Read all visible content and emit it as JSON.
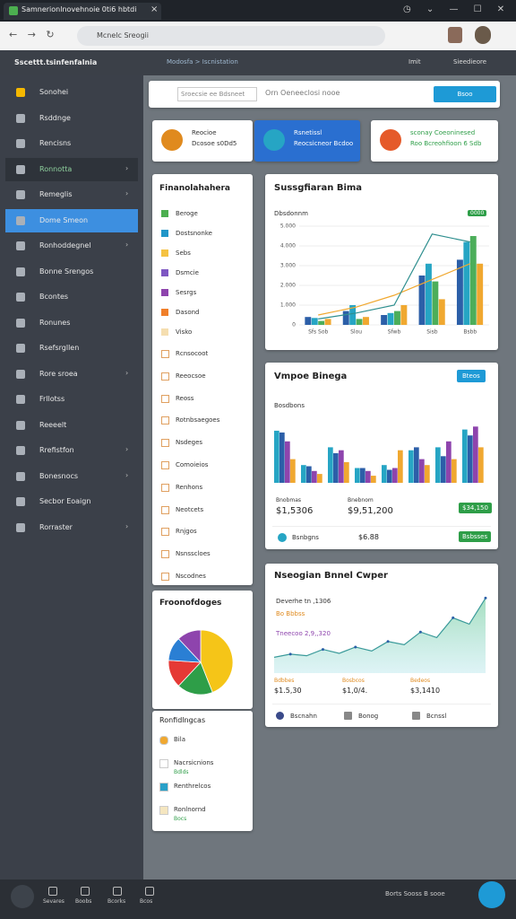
{
  "browser": {
    "tab_title": "Samnerionlnovehnoie 0ti6 hbtdi",
    "url": "Mcnelc Sreogii"
  },
  "app_header": {
    "brand": "Sscettt.tsinfenfalnia",
    "breadcrumb": "Modosfa > Iscnistation",
    "user_label": "Imit",
    "account": "Sieedieore"
  },
  "sidebar": {
    "items": [
      "Sonohei",
      "Rsddnge",
      "Rencisns",
      "Ronnotta",
      "Remeglis",
      "Dome Smeon",
      "Ronhoddegnel",
      "Bonne Srengos",
      "Bcontes",
      "Ronunes",
      "Rsefsrgllen",
      "Rore sroea",
      "Frllotss",
      "Reeeelt",
      "Rrefistfon",
      "Bonesnocs",
      "Secbor Eoaign",
      "Rorraster"
    ]
  },
  "search": {
    "placeholder": "Sroecsie ee Bdsneet",
    "text": "Orn Oeneeclosi nooe",
    "button": "Bsoo"
  },
  "promos": [
    {
      "title": "Reocioe",
      "sub": "Dcosoe s0Dd5"
    },
    {
      "title": "Rsnetissl",
      "sub": "Reocsicneor Bcdoo"
    },
    {
      "title": "sconay Coeoninesed",
      "sub": "Roo Bcreohfioon 6 Sdb"
    }
  ],
  "filters": {
    "title": "Finanolahahera",
    "checkboxes": [
      {
        "label": "Beroge",
        "color": "#4caf50"
      },
      {
        "label": "Dostsnonke",
        "color": "#2196c8"
      },
      {
        "label": "Sebs",
        "color": "#f5c242"
      },
      {
        "label": "Dsmcie",
        "color": "#7e57c2"
      },
      {
        "label": "Sesrgs",
        "color": "#8e44ad"
      },
      {
        "label": "Dasond",
        "color": "#f07f2a"
      },
      {
        "label": "Visko",
        "color": "#f5deb0"
      }
    ],
    "items": [
      "Rcnsocoot",
      "Reeocsoe",
      "Reoss",
      "Rotnbsaegoes",
      "Nsdeges",
      "Comoieios",
      "Renhons",
      "Neotcets",
      "Rnjgos",
      "Nsnsscloes",
      "Nscodnes"
    ]
  },
  "pie_panel": {
    "type": "pie",
    "title": "Froonofdoges",
    "values": [
      44,
      18,
      14,
      12,
      12
    ],
    "colors": [
      "#f5c518",
      "#2e9e48",
      "#e53935",
      "#2a7fd4",
      "#8e44ad"
    ]
  },
  "legend_panel": {
    "title": "Ronfidlngcas",
    "items": [
      {
        "label": "Bila",
        "color": "#f0a830"
      },
      {
        "label": "Nacrsicnions",
        "sub": "Bdlds",
        "color": "#ffffff"
      },
      {
        "label": "Renthrelcos",
        "color": "#2aa0c8"
      },
      {
        "label": "Ronlnornd",
        "sub": "Bocs",
        "color": "#f5e6c0"
      }
    ]
  },
  "sales_chart": {
    "type": "bar",
    "title": "Sussgfiaran Bima",
    "subtitle": "Dbsdonnm",
    "badge": "0000",
    "categories": [
      "Sfs Sob",
      "Slou",
      "Sfwb",
      "Sisb",
      "Bsbb"
    ],
    "ylim": [
      0,
      5000
    ],
    "yticks": [
      0,
      {
        "value": 1000,
        "label": "1.000"
      },
      {
        "value": 2000,
        "label": "2.000"
      },
      {
        "value": 3000,
        "label": "3.000"
      },
      {
        "value": 4000,
        "label": "4.000"
      },
      {
        "value": 5000,
        "label": "5.000"
      }
    ],
    "series": [
      {
        "color": "#2c5fa8",
        "values": [
          400,
          700,
          500,
          2500,
          3300
        ]
      },
      {
        "color": "#26a5c4",
        "values": [
          350,
          1000,
          600,
          3100,
          4200
        ]
      },
      {
        "color": "#4cae5a",
        "values": [
          200,
          300,
          700,
          2200,
          4500
        ]
      },
      {
        "color": "#f0a830",
        "values": [
          300,
          400,
          1000,
          1300,
          3100
        ]
      }
    ],
    "lines": [
      {
        "color": "#f0a830",
        "values": [
          500,
          900,
          1500,
          2300,
          3100
        ]
      },
      {
        "color": "#2f8f8f",
        "values": [
          300,
          600,
          1000,
          4600,
          4200
        ]
      }
    ]
  },
  "volume_chart": {
    "type": "bar",
    "title": "Vmpoe Binega",
    "button": "Bteos",
    "subtitle": "Bosdbons",
    "ylim": [
      0,
      100
    ],
    "series": [
      {
        "color": "#26a5c4",
        "values": [
          88,
          30,
          60,
          25,
          30,
          55,
          60,
          90
        ]
      },
      {
        "color": "#2c5fa8",
        "values": [
          85,
          28,
          50,
          25,
          22,
          60,
          45,
          80
        ]
      },
      {
        "color": "#8e44ad",
        "values": [
          70,
          20,
          55,
          20,
          25,
          40,
          70,
          95
        ]
      },
      {
        "color": "#f0a830",
        "values": [
          40,
          15,
          35,
          12,
          55,
          30,
          40,
          60
        ]
      }
    ],
    "stats": [
      {
        "label": "Bnobmas",
        "value": "$1,5306"
      },
      {
        "label": "Bnebnom",
        "value": "$9,51,200"
      }
    ],
    "badge": "$34,150",
    "footer": {
      "label": "Bsnbgns",
      "value": "$6.88",
      "badge": "Bsbsses"
    }
  },
  "trend_chart": {
    "type": "area",
    "title": "Nseogian Bnnel Cwper",
    "line1": "Deverhe tn ,1306",
    "line2": "Bo Bbbss",
    "line3": "Tneecoo 2,9,,320",
    "ylim": [
      0,
      100
    ],
    "color": "#3a9a9a",
    "values": [
      20,
      24,
      22,
      30,
      25,
      33,
      28,
      40,
      36,
      52,
      45,
      70,
      62,
      95
    ],
    "stats": [
      {
        "label": "Bdbbes",
        "value": "$1.5,30"
      },
      {
        "label": "Bosbcos",
        "value": "$1,0/4."
      },
      {
        "label": "Bedeos",
        "value": "$3,1410"
      }
    ],
    "footer": [
      "Bscnahn",
      "Bonog",
      "Bcnssl"
    ]
  },
  "bottom_bar": {
    "items": [
      "Sevares",
      "Boobs",
      "Bcorks",
      "Bcos"
    ],
    "status": "Borts Sooss B sooe"
  }
}
